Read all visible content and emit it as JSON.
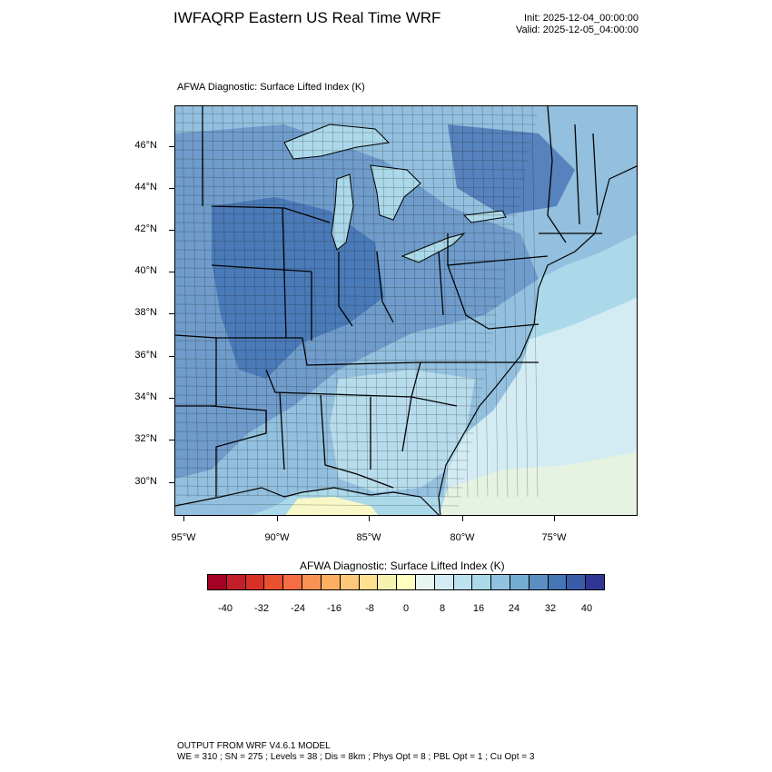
{
  "header": {
    "title": "IWFAQRP Eastern US Real Time WRF",
    "init": "Init: 2025-12-04_00:00:00",
    "valid": "Valid: 2025-12-05_04:00:00"
  },
  "panel": {
    "title": "AFWA Diagnostic: Surface Lifted Index   (K)"
  },
  "map": {
    "lat_labels": [
      "46°N",
      "44°N",
      "42°N",
      "40°N",
      "38°N",
      "36°N",
      "34°N",
      "32°N",
      "30°N"
    ],
    "lon_labels": [
      "95°W",
      "90°W",
      "85°W",
      "80°W",
      "75°W"
    ],
    "field_colors": {
      "deep_blue": "#4a7ab8",
      "mid_blue": "#6f9ccb",
      "light_blue": "#93c0de",
      "pale_blue": "#b7dcec",
      "very_pale": "#d3ecf4",
      "pale_green": "#e6f3e3",
      "pale_yellow": "#f7f7c8"
    }
  },
  "colorbar": {
    "title": "AFWA Diagnostic: Surface Lifted Index  (K)",
    "tick_labels": [
      "-40",
      "-32",
      "-24",
      "-16",
      "-8",
      "0",
      "8",
      "16",
      "24",
      "32",
      "40"
    ],
    "colors": [
      "#a50026",
      "#c21f2b",
      "#d73027",
      "#e8502f",
      "#f46d43",
      "#f99355",
      "#fdae61",
      "#fec87a",
      "#fee090",
      "#f5f2b0",
      "#ffffbf",
      "#e6f5f0",
      "#d3ecf4",
      "#bde1ef",
      "#abd9e9",
      "#91c2df",
      "#74add1",
      "#5b8fc3",
      "#4575b4",
      "#3a5ca8",
      "#313695"
    ]
  },
  "footer": {
    "line1": "OUTPUT FROM WRF V4.6.1 MODEL",
    "line2": "WE = 310 ; SN = 275 ; Levels = 38 ; Dis = 8km ; Phys Opt = 8 ; PBL Opt = 1 ; Cu Opt = 3"
  }
}
